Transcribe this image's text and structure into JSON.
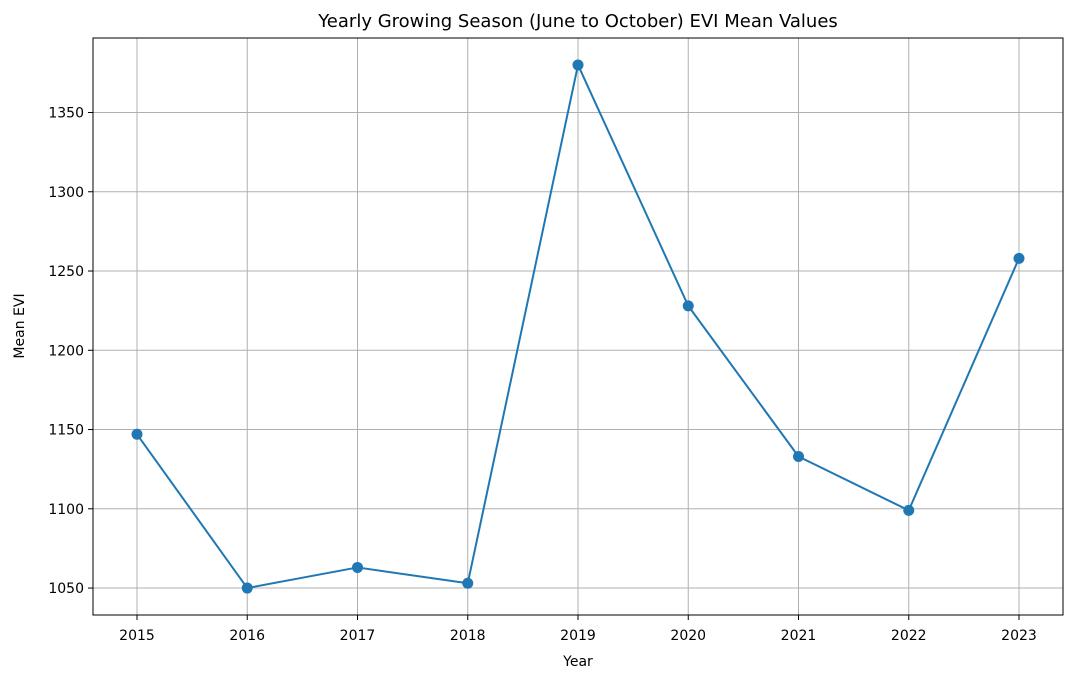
{
  "chart_data": {
    "type": "line",
    "title": "Yearly Growing Season (June to October) EVI Mean Values",
    "xlabel": "Year",
    "ylabel": "Mean EVI",
    "x": [
      "2015",
      "2016",
      "2017",
      "2018",
      "2019",
      "2020",
      "2021",
      "2022",
      "2023"
    ],
    "series": [
      {
        "values": [
          1147,
          1050,
          1063,
          1053,
          1380,
          1228,
          1133,
          1099,
          1258
        ],
        "color": "#1f77b4",
        "marker": "circle"
      }
    ],
    "yticks": [
      1050,
      1100,
      1150,
      1200,
      1250,
      1300,
      1350
    ],
    "ylim": [
      1033,
      1397
    ],
    "grid": true
  }
}
